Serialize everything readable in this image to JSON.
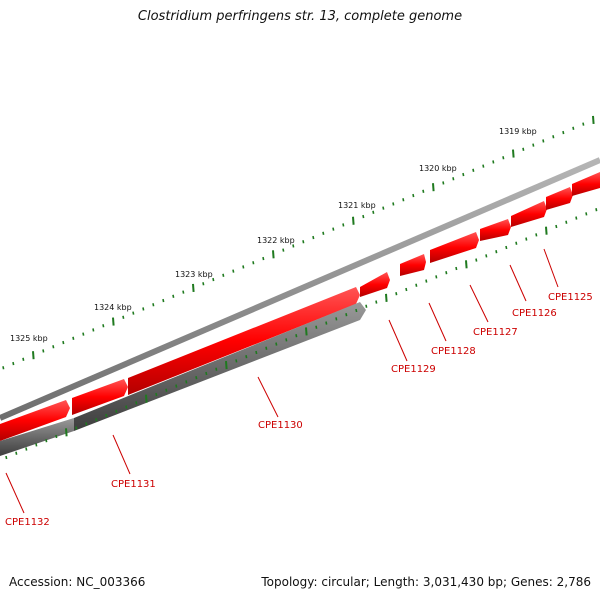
{
  "title": "Clostridium perfringens str. 13, complete genome",
  "footer": {
    "accession": "Accession: NC_003366",
    "stats": "Topology: circular; Length: 3,031,430 bp; Genes: 2,786"
  },
  "colors": {
    "forward_gene": "#ff1a1a",
    "reverse_gene": "#6a6a6a",
    "backbone": "#8a8a8a",
    "ticks": "#1f7a1f",
    "label": "#cc0000"
  },
  "kbp_labels": [
    "1319 kbp",
    "1320 kbp",
    "1321 kbp",
    "1322 kbp",
    "1323 kbp",
    "1324 kbp",
    "1325 kbp"
  ],
  "genes": [
    {
      "name": "CPE1125",
      "strand": "forward"
    },
    {
      "name": "CPE1126",
      "strand": "forward"
    },
    {
      "name": "CPE1127",
      "strand": "forward"
    },
    {
      "name": "CPE1128",
      "strand": "forward"
    },
    {
      "name": "CPE1129",
      "strand": "forward"
    },
    {
      "name": "CPE1130",
      "strand": "reverse"
    },
    {
      "name": "CPE1131",
      "strand": "reverse"
    },
    {
      "name": "CPE1132",
      "strand": "forward"
    }
  ]
}
